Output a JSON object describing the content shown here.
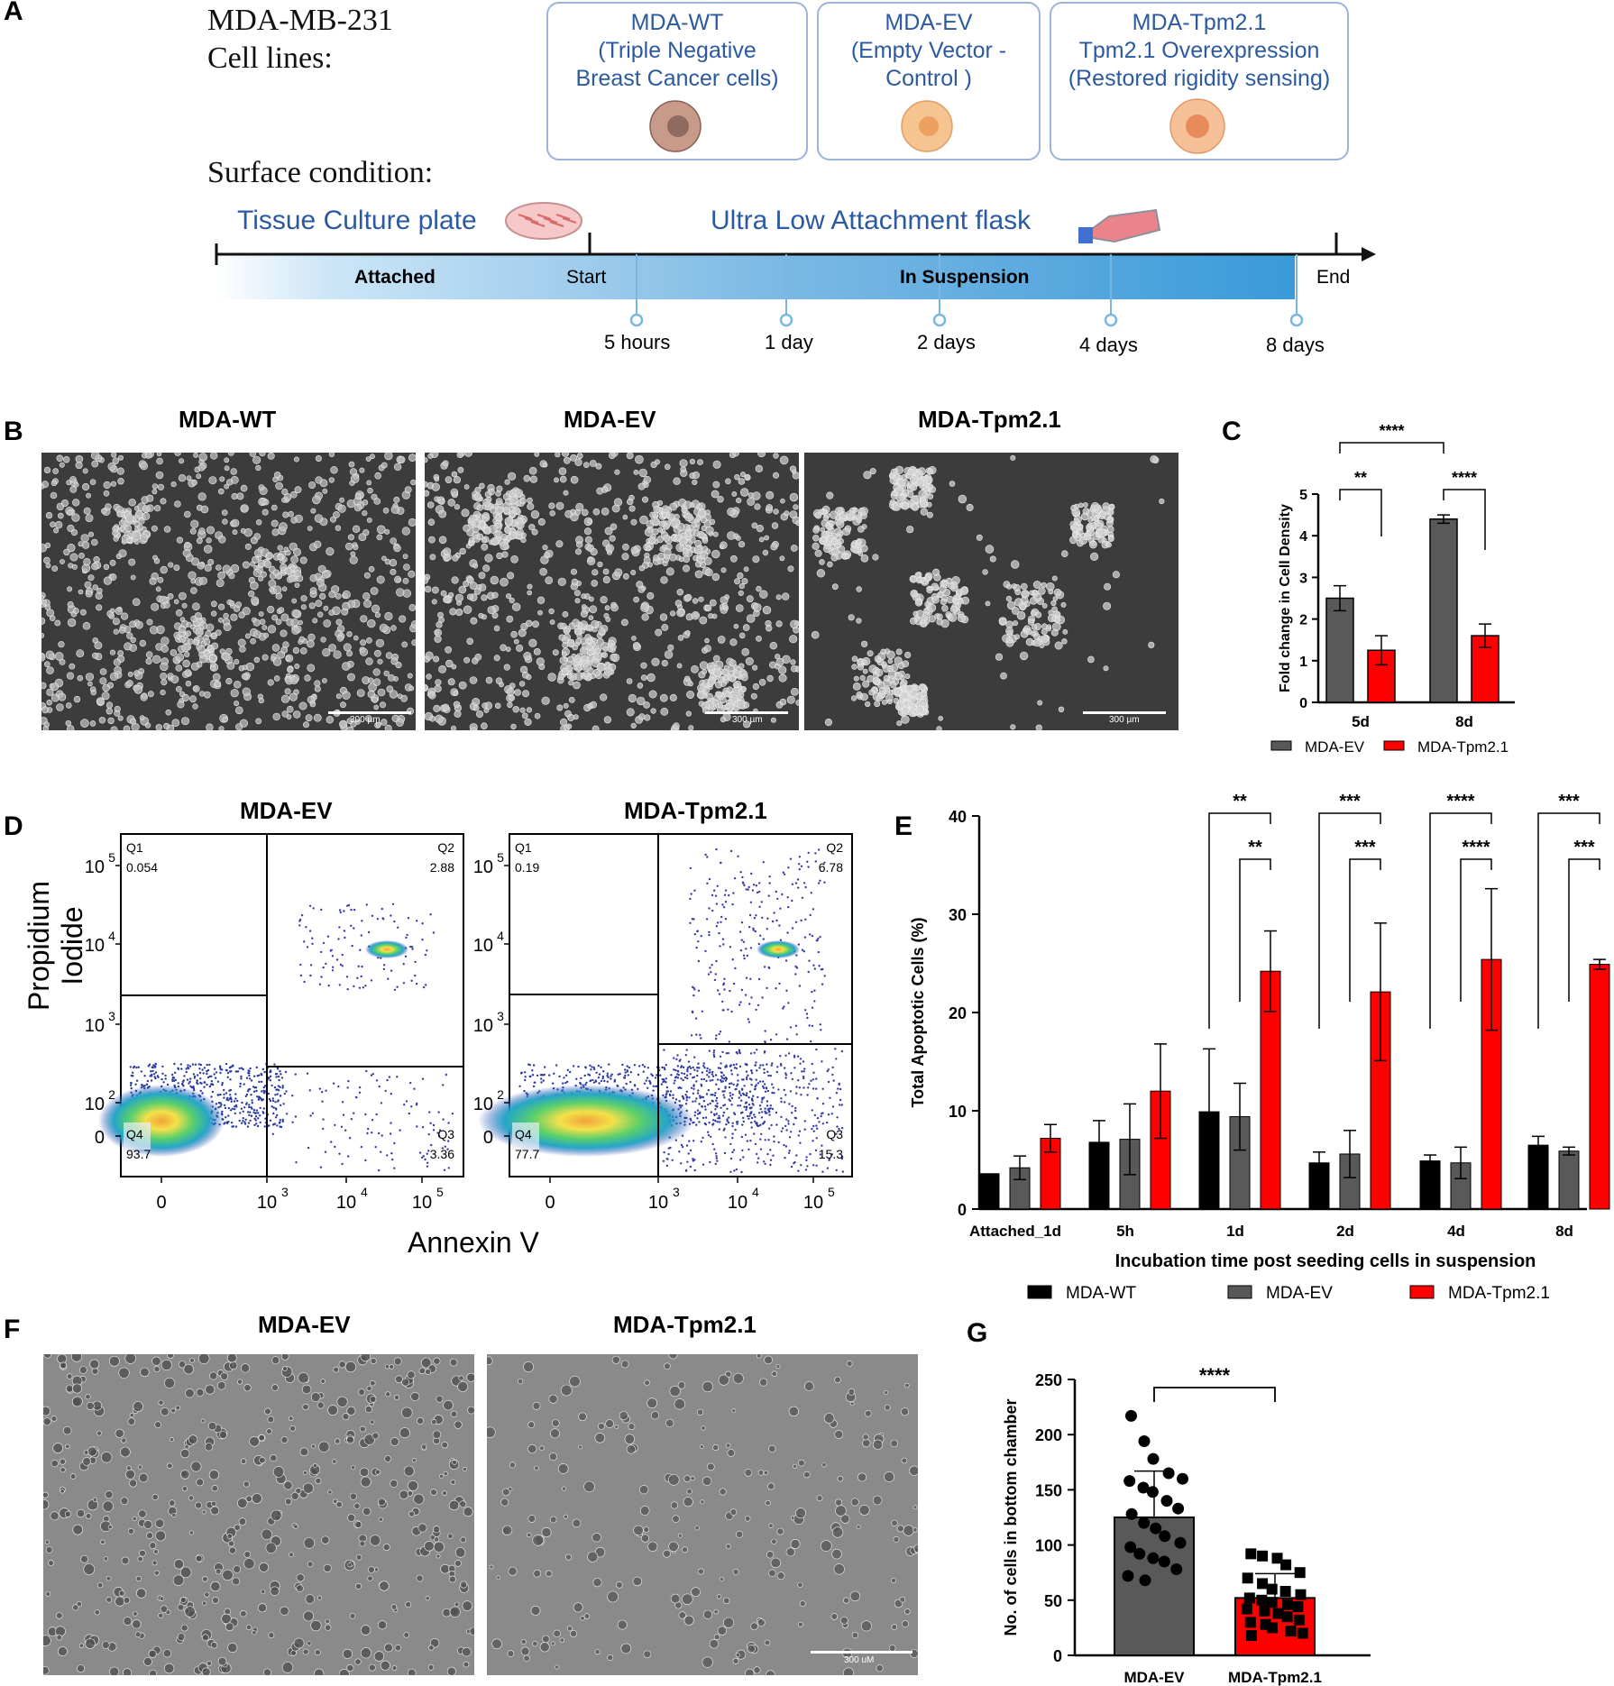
{
  "panel_labels": [
    "A",
    "B",
    "C",
    "D",
    "E",
    "F",
    "G"
  ],
  "panelA": {
    "cell_lines_label_1": "MDA-MB-231",
    "cell_lines_label_2": "Cell lines:",
    "surface_label": "Surface condition:",
    "boxes": [
      {
        "lines": [
          "MDA-WT",
          "(Triple Negative",
          "Breast Cancer cells)"
        ],
        "color": "#c79a8a"
      },
      {
        "lines": [
          "MDA-EV",
          "(Empty Vector -",
          "Control )"
        ],
        "color": "#f5c490"
      },
      {
        "lines": [
          "MDA-Tpm2.1",
          "Tpm2.1 Overexpression",
          "(Restored rigidity sensing)"
        ],
        "color": "#f6c199"
      }
    ],
    "tissue_culture": "Tissue Culture plate",
    "ula_flask": "Ultra Low Attachment flask",
    "attached": "Attached",
    "start": "Start",
    "in_suspension": "In Suspension",
    "end": "End",
    "timepoints": [
      "5 hours",
      "1 day",
      "2 days",
      "4 days",
      "8 days"
    ]
  },
  "panelB": {
    "titles": [
      "MDA-WT",
      "MDA-EV",
      "MDA-Tpm2.1"
    ],
    "scale": "300 µm"
  },
  "panelF": {
    "titles": [
      "MDA-EV",
      "MDA-Tpm2.1"
    ],
    "scale": "300 uM"
  },
  "panelD": {
    "titles": [
      "MDA-EV",
      "MDA-Tpm2.1"
    ],
    "ylabel": "Propidium Iodide",
    "xlabel": "Annexin V",
    "yticks": [
      "10",
      "10",
      "10",
      "10",
      "0"
    ],
    "yexp": [
      "5",
      "4",
      "3",
      "2",
      ""
    ],
    "xticks": [
      "0",
      "10",
      "10",
      "10"
    ],
    "xexp": [
      "",
      "3",
      "4",
      "5"
    ],
    "quadrant_names": [
      "Q1",
      "Q2",
      "Q3",
      "Q4"
    ],
    "plots": [
      {
        "q1": "0.054",
        "q2": "2.88",
        "q3": "3.36",
        "q4": "93.7"
      },
      {
        "q1": "0.19",
        "q2": "6.78",
        "q3": "15.3",
        "q4": "77.7"
      }
    ]
  },
  "chart_data": [
    {
      "id": "C",
      "type": "bar",
      "categories": [
        "5d",
        "8d"
      ],
      "series": [
        {
          "name": "MDA-EV",
          "values": [
            2.5,
            4.4
          ],
          "errors": [
            0.3,
            0.1
          ],
          "color": "#595959"
        },
        {
          "name": "MDA-Tpm2.1",
          "values": [
            1.25,
            1.6
          ],
          "errors": [
            0.35,
            0.28
          ],
          "color": "#ff0000"
        }
      ],
      "ylabel": "Fold change in Cell Density",
      "ylim": [
        0,
        5
      ],
      "yticks": [
        "0",
        "1",
        "2",
        "3",
        "4",
        "5"
      ],
      "significance": [
        "**",
        "****",
        "****"
      ],
      "legend": "bottom"
    },
    {
      "id": "E",
      "type": "bar",
      "categories": [
        "Attached_1d",
        "5h",
        "1d",
        "2d",
        "4d",
        "8d"
      ],
      "series": [
        {
          "name": "MDA-WT",
          "values": [
            3.6,
            6.8,
            9.9,
            4.7,
            4.9,
            6.5
          ],
          "errors": [
            0,
            2.2,
            6.4,
            1.1,
            0.6,
            0.9
          ],
          "color": "#000000"
        },
        {
          "name": "MDA-EV",
          "values": [
            4.2,
            7.1,
            9.4,
            5.6,
            4.7,
            5.9
          ],
          "errors": [
            1.2,
            3.6,
            3.4,
            2.4,
            1.6,
            0.4
          ],
          "color": "#595959"
        },
        {
          "name": "MDA-Tpm2.1",
          "values": [
            7.2,
            12.0,
            24.2,
            22.1,
            25.4,
            24.9
          ],
          "errors": [
            1.4,
            4.8,
            4.1,
            7.0,
            7.2,
            0.5
          ],
          "color": "#ff0000"
        }
      ],
      "xlabel": "Incubation time post seeding cells in suspension",
      "ylabel": "Total Apoptotic Cells (%)",
      "ylim": [
        0,
        40
      ],
      "yticks": [
        "0",
        "10",
        "20",
        "30",
        "40"
      ],
      "significance": [
        [
          "**",
          "**"
        ],
        [
          "***",
          "***"
        ],
        [
          "****",
          "****"
        ],
        [
          "***",
          "***"
        ]
      ],
      "legend": "bottom"
    },
    {
      "id": "G",
      "type": "bar",
      "categories": [
        "MDA-EV",
        "MDA-Tpm2.1"
      ],
      "values": [
        125,
        52
      ],
      "errors": [
        42,
        22
      ],
      "colors": [
        "#595959",
        "#ff0000"
      ],
      "ylabel": "No. of cells in bottom chamber",
      "ylim": [
        0,
        250
      ],
      "yticks": [
        "0",
        "50",
        "100",
        "150",
        "200",
        "250"
      ],
      "significance": "****",
      "points": [
        [
          217,
          194,
          178,
          165,
          160,
          158,
          152,
          148,
          140,
          133,
          128,
          120,
          115,
          108,
          102,
          98,
          92,
          88,
          85,
          78,
          72,
          68
        ],
        [
          92,
          90,
          88,
          82,
          75,
          70,
          65,
          60,
          58,
          55,
          52,
          50,
          48,
          46,
          44,
          42,
          40,
          38,
          35,
          32,
          30,
          28,
          25,
          22,
          20,
          18
        ]
      ]
    }
  ]
}
